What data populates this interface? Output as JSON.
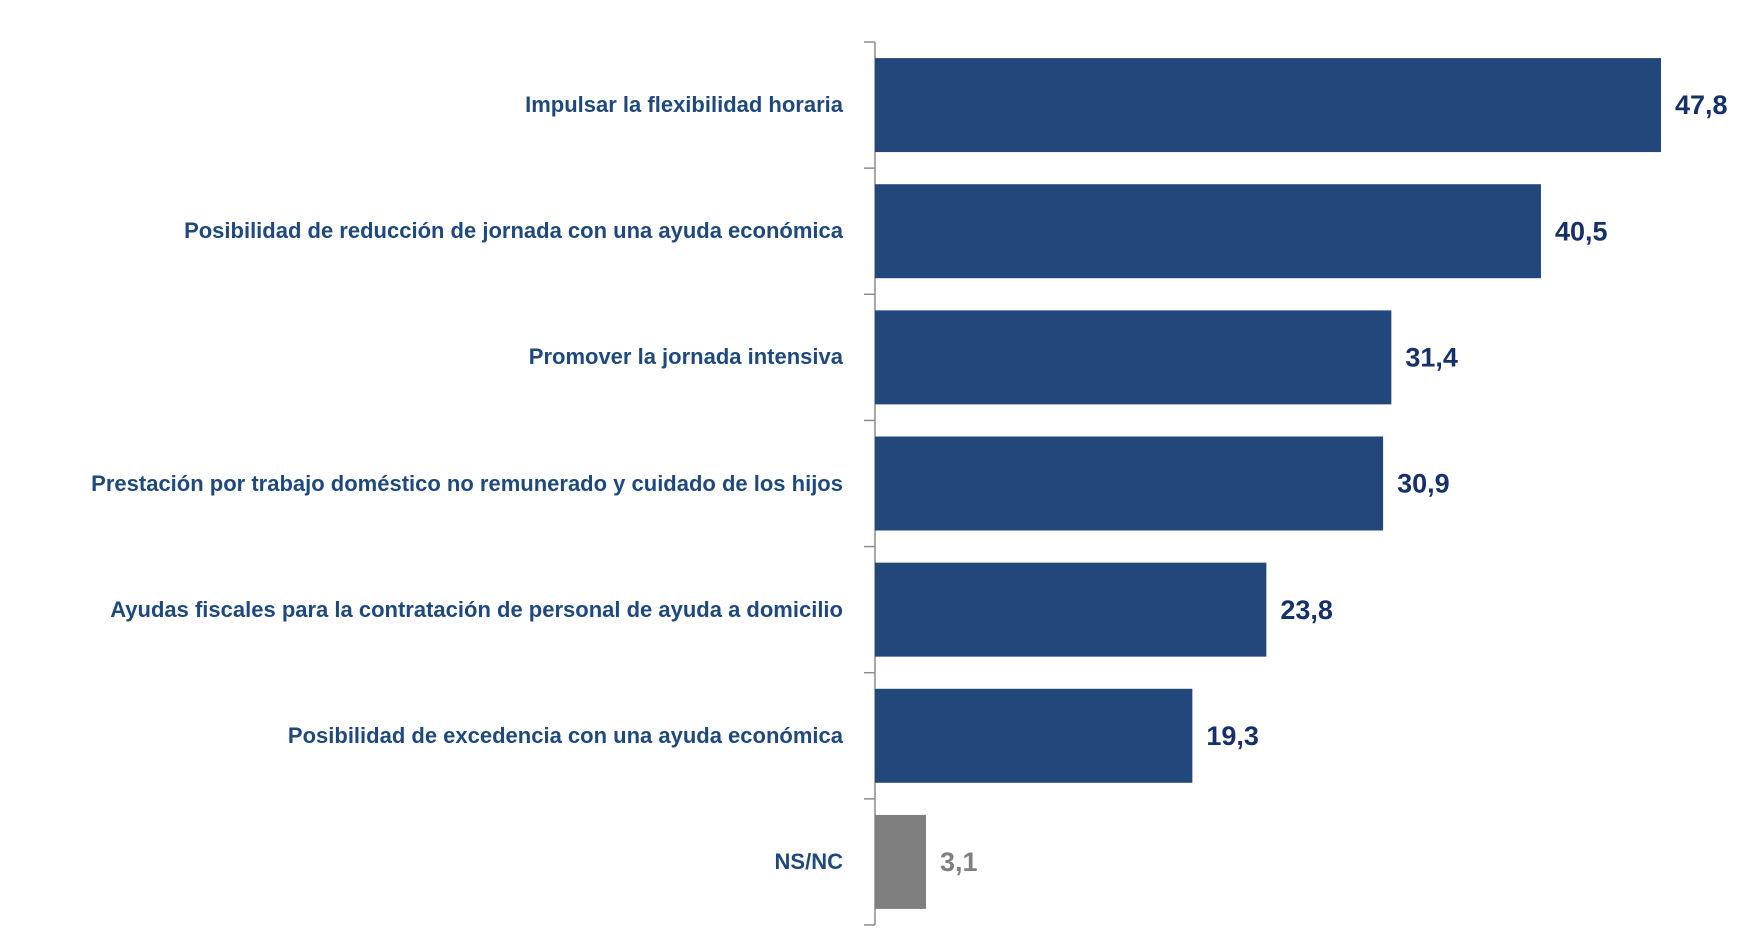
{
  "chart_data": {
    "type": "bar",
    "orientation": "horizontal",
    "categories": [
      "Impulsar la flexibilidad horaria",
      "Posibilidad de reducción de jornada con una ayuda económica",
      "Promover la jornada intensiva",
      "Prestación por trabajo doméstico no remunerado y cuidado de los hijos",
      "Ayudas fiscales para la contratación de personal de ayuda a domicilio",
      "Posibilidad de excedencia con una ayuda económica",
      "NS/NC"
    ],
    "values": [
      47.8,
      40.5,
      31.4,
      30.9,
      23.8,
      19.3,
      3.1
    ],
    "value_labels": [
      "47,8",
      "40,5",
      "31,4",
      "30,9",
      "23,8",
      "19,3",
      "3,1"
    ],
    "colors": [
      "#22477a",
      "#22477a",
      "#22477a",
      "#22477a",
      "#22477a",
      "#22477a",
      "#7f7f7f"
    ],
    "value_label_colors": [
      "#16306a",
      "#16306a",
      "#16306a",
      "#16306a",
      "#16306a",
      "#16306a",
      "#7f7f7f"
    ],
    "xlim": [
      0,
      50
    ]
  }
}
